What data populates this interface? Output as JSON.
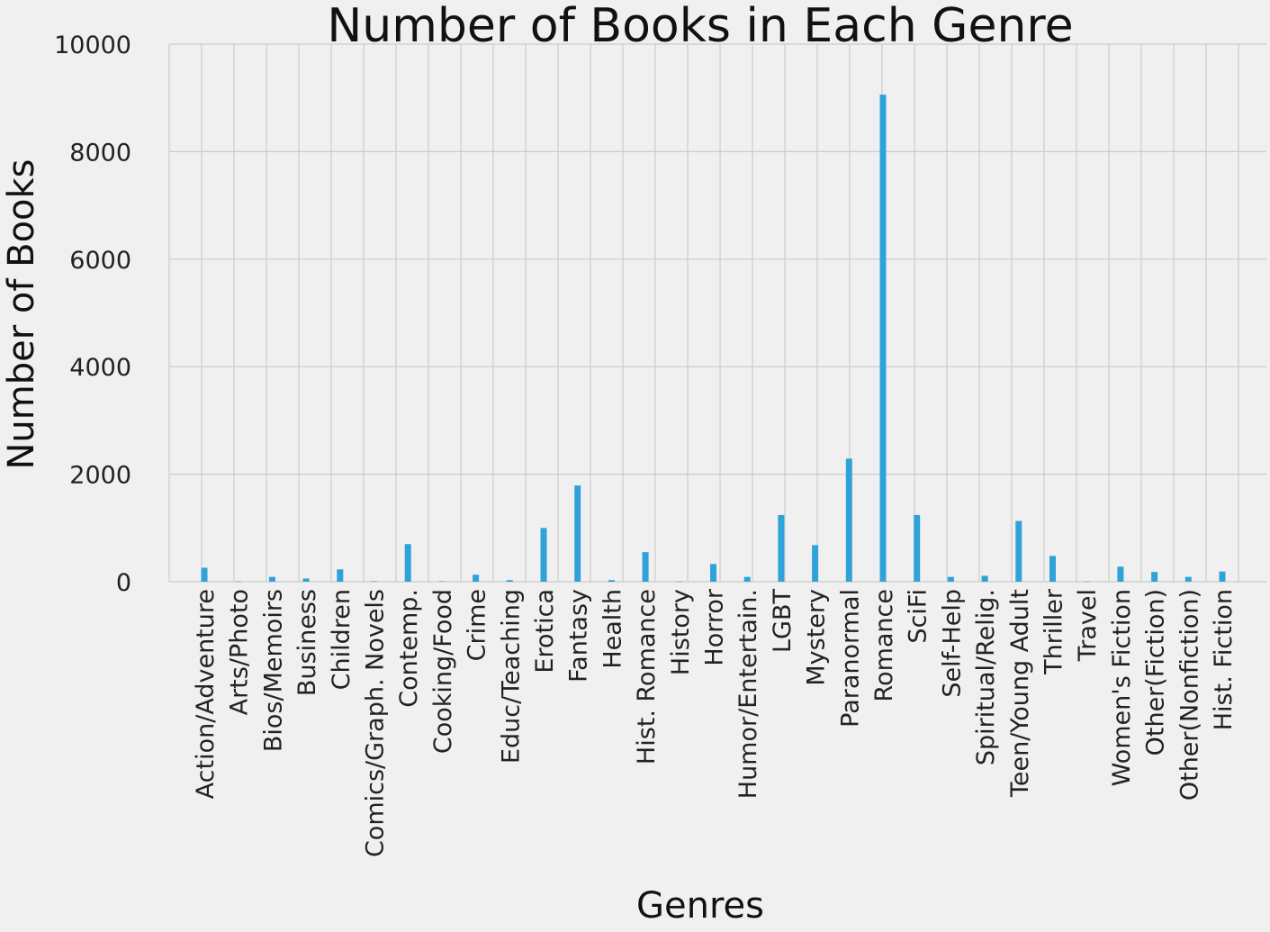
{
  "chart_data": {
    "type": "bar",
    "title": "Number of Books in Each Genre",
    "xlabel": "Genres",
    "ylabel": "Number of Books",
    "ylim": [
      0,
      10000
    ],
    "yticks": [
      "0",
      "2000",
      "4000",
      "6000",
      "8000",
      "10000"
    ],
    "grid": true,
    "bar_color": "#30a2da",
    "background_color": "#f0f0f0",
    "categories": [
      "Action/Adventure",
      "Arts/Photo",
      "Bios/Memoirs",
      "Business",
      "Children",
      "Comics/Graph. Novels",
      "Contemp.",
      "Cooking/Food",
      "Crime",
      "Educ/Teaching",
      "Erotica",
      "Fantasy",
      "Health",
      "Hist. Romance",
      "History",
      "Horror",
      "Humor/Entertain.",
      "LGBT",
      "Mystery",
      "Paranormal",
      "Romance",
      "SciFi",
      "Self-Help",
      "Spiritual/Relig.",
      "Teen/Young Adult",
      "Thriller",
      "Travel",
      "Women's Fiction",
      "Other(Fiction)",
      "Other(Nonfiction)",
      "Hist. Fiction"
    ],
    "values": [
      260,
      5,
      90,
      60,
      230,
      10,
      700,
      8,
      130,
      30,
      1000,
      1790,
      30,
      550,
      5,
      330,
      90,
      1240,
      680,
      2290,
      9060,
      1240,
      90,
      110,
      1130,
      480,
      5,
      280,
      180,
      90,
      190
    ]
  }
}
